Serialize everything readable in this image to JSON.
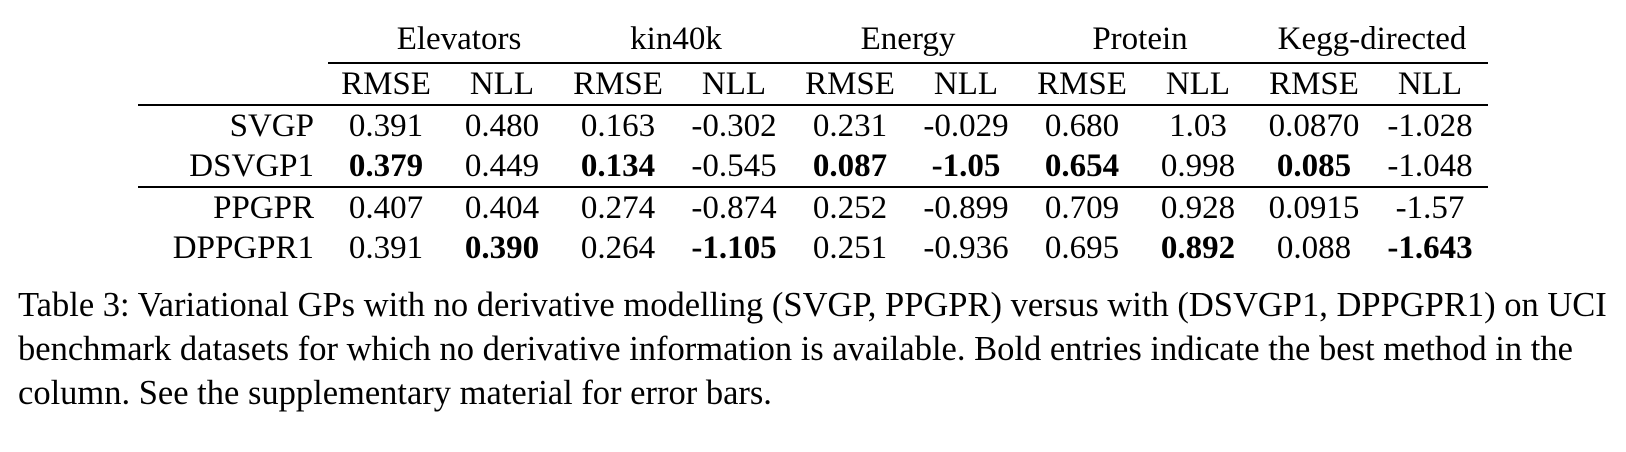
{
  "table": {
    "datasets": [
      "Elevators",
      "kin40k",
      "Energy",
      "Protein",
      "Kegg-directed"
    ],
    "metrics": [
      "RMSE",
      "NLL",
      "RMSE",
      "NLL",
      "RMSE",
      "NLL",
      "RMSE",
      "NLL",
      "RMSE",
      "NLL"
    ],
    "rows": [
      {
        "method": "SVGP",
        "values": [
          "0.391",
          "0.480",
          "0.163",
          "-0.302",
          "0.231",
          "-0.029",
          "0.680",
          "1.03",
          "0.0870",
          "-1.028"
        ],
        "bold": [
          false,
          false,
          false,
          false,
          false,
          false,
          false,
          false,
          false,
          false
        ]
      },
      {
        "method": "DSVGP1",
        "values": [
          "0.379",
          "0.449",
          "0.134",
          "-0.545",
          "0.087",
          "-1.05",
          "0.654",
          "0.998",
          "0.085",
          "-1.048"
        ],
        "bold": [
          true,
          false,
          true,
          false,
          true,
          true,
          true,
          false,
          true,
          false
        ]
      },
      {
        "method": "PPGPR",
        "values": [
          "0.407",
          "0.404",
          "0.274",
          "-0.874",
          "0.252",
          "-0.899",
          "0.709",
          "0.928",
          "0.0915",
          "-1.57"
        ],
        "bold": [
          false,
          false,
          false,
          false,
          false,
          false,
          false,
          false,
          false,
          false
        ]
      },
      {
        "method": "DPPGPR1",
        "values": [
          "0.391",
          "0.390",
          "0.264",
          "-1.105",
          "0.251",
          "-0.936",
          "0.695",
          "0.892",
          "0.088",
          "-1.643"
        ],
        "bold": [
          false,
          true,
          false,
          true,
          false,
          false,
          false,
          true,
          false,
          true
        ]
      }
    ]
  },
  "caption": "Table 3:  Variational GPs with no derivative modelling (SVGP, PPGPR) versus with (DSVGP1, DPPGPR1) on UCI benchmark datasets for which no derivative information is available. Bold entries indicate the best method in the column. See the supplementary material for error bars."
}
